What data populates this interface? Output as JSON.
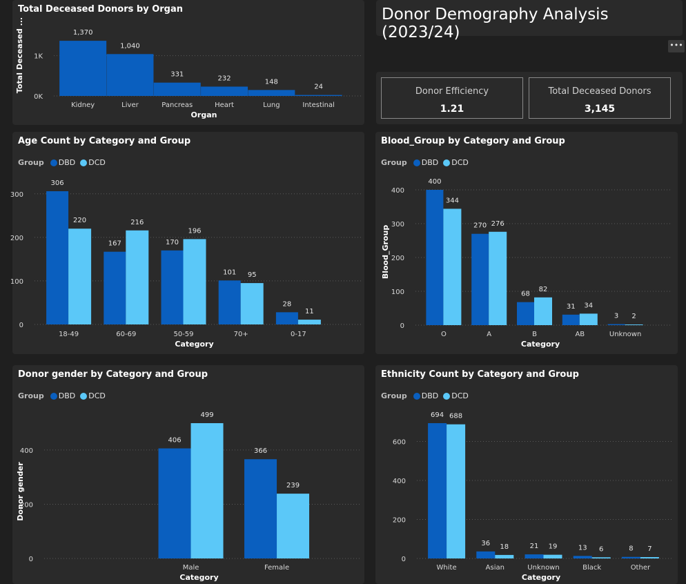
{
  "page": {
    "title": "Donor Demography Analysis (2023/24)",
    "more_label": "•••"
  },
  "kpis": [
    {
      "label": "Donor Efficiency",
      "value": "1.21"
    },
    {
      "label": "Total Deceased Donors",
      "value": "3,145"
    }
  ],
  "legend": {
    "title": "Group",
    "items": [
      {
        "name": "DBD",
        "color": "#0a5fbf"
      },
      {
        "name": "DCD",
        "color": "#5bc8f8"
      }
    ]
  },
  "chart_data": [
    {
      "id": "organ",
      "type": "bar",
      "title": "Total Deceased Donors by Organ",
      "xlabel": "Organ",
      "ylabel": "Total Deceased ...",
      "categories": [
        "Kidney",
        "Liver",
        "Pancreas",
        "Heart",
        "Lung",
        "Intestinal"
      ],
      "series": [
        {
          "values": [
            1370,
            1040,
            331,
            232,
            148,
            24
          ],
          "labels": [
            "1,370",
            "1,040",
            "331",
            "232",
            "148",
            "24"
          ],
          "color": "#0a5fbf"
        }
      ],
      "yticks": [
        {
          "v": 0,
          "t": "0K"
        },
        {
          "v": 1000,
          "t": "1K"
        }
      ],
      "ylim": [
        0,
        1440
      ],
      "grid": true
    },
    {
      "id": "age",
      "type": "bar",
      "title": "Age Count by Category and Group",
      "xlabel": "Category",
      "ylabel": "",
      "categories": [
        "18-49",
        "60-69",
        "50-59",
        "70+",
        "0-17"
      ],
      "series": [
        {
          "name": "DBD",
          "values": [
            306,
            167,
            170,
            101,
            28
          ],
          "color": "#0a5fbf"
        },
        {
          "name": "DCD",
          "values": [
            220,
            216,
            196,
            95,
            11
          ],
          "color": "#5bc8f8"
        }
      ],
      "yticks": [
        {
          "v": 0,
          "t": "0"
        },
        {
          "v": 100,
          "t": "100"
        },
        {
          "v": 200,
          "t": "200"
        },
        {
          "v": 300,
          "t": "300"
        }
      ],
      "ylim": [
        0,
        306
      ],
      "grid": true
    },
    {
      "id": "blood",
      "type": "bar",
      "title": "Blood_Group by Category and Group",
      "xlabel": "Category",
      "ylabel": "Blood_Group",
      "categories": [
        "O",
        "A",
        "B",
        "AB",
        "Unknown"
      ],
      "series": [
        {
          "name": "DBD",
          "values": [
            400,
            270,
            68,
            31,
            3
          ],
          "color": "#0a5fbf"
        },
        {
          "name": "DCD",
          "values": [
            344,
            276,
            82,
            34,
            2
          ],
          "color": "#5bc8f8"
        }
      ],
      "yticks": [
        {
          "v": 0,
          "t": "0"
        },
        {
          "v": 100,
          "t": "100"
        },
        {
          "v": 200,
          "t": "200"
        },
        {
          "v": 300,
          "t": "300"
        },
        {
          "v": 400,
          "t": "400"
        }
      ],
      "ylim": [
        0,
        400
      ],
      "grid": true
    },
    {
      "id": "gender",
      "type": "bar",
      "title": "Donor gender by Category and Group",
      "xlabel": "Category",
      "ylabel": "Donor gender",
      "categories": [
        "Male",
        "Female"
      ],
      "series": [
        {
          "name": "DBD",
          "values": [
            406,
            366
          ],
          "color": "#0a5fbf"
        },
        {
          "name": "DCD",
          "values": [
            499,
            239
          ],
          "color": "#5bc8f8"
        }
      ],
      "yticks": [
        {
          "v": 0,
          "t": "0"
        },
        {
          "v": 200,
          "t": "200"
        },
        {
          "v": 400,
          "t": "400"
        }
      ],
      "ylim": [
        0,
        499
      ],
      "grid": true
    },
    {
      "id": "ethnicity",
      "type": "bar",
      "title": "Ethnicity Count by Category and Group",
      "xlabel": "Category",
      "ylabel": "",
      "categories": [
        "White",
        "Asian",
        "Unknown",
        "Black",
        "Other"
      ],
      "series": [
        {
          "name": "DBD",
          "values": [
            694,
            36,
            21,
            13,
            8
          ],
          "color": "#0a5fbf"
        },
        {
          "name": "DCD",
          "values": [
            688,
            18,
            19,
            6,
            7
          ],
          "color": "#5bc8f8"
        }
      ],
      "yticks": [
        {
          "v": 0,
          "t": "0"
        },
        {
          "v": 200,
          "t": "200"
        },
        {
          "v": 400,
          "t": "400"
        },
        {
          "v": 600,
          "t": "600"
        }
      ],
      "ylim": [
        0,
        694
      ],
      "grid": true
    }
  ]
}
